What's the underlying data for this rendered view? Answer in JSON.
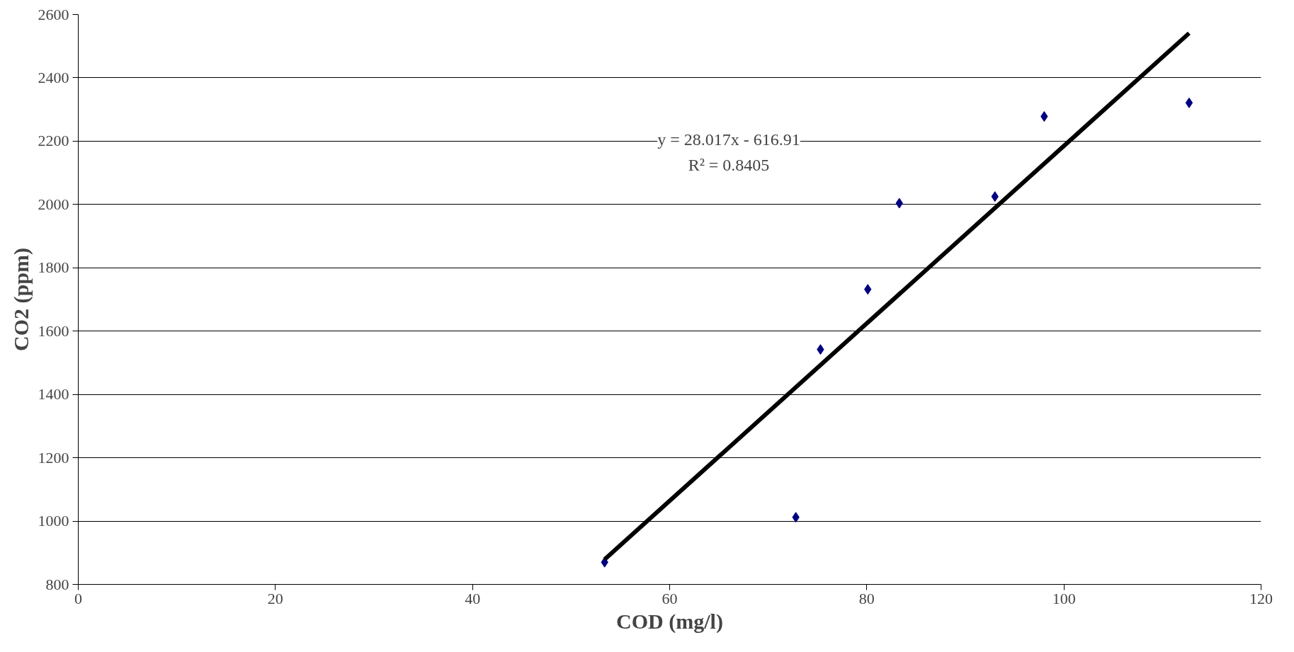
{
  "chart_data": {
    "type": "scatter",
    "xlabel": "COD (mg/l)",
    "ylabel": "CO2 (ppm)",
    "x": [
      53.4,
      72.8,
      75.3,
      80.1,
      83.3,
      93.0,
      98.0,
      112.7
    ],
    "series": [
      {
        "color": "#000080",
        "marker": "diamond",
        "values": [
          870,
          1012,
          1542,
          1732,
          2004,
          2025,
          2278,
          2321
        ]
      },
      {
        "type": "line",
        "color": "#000000",
        "x": [
          53.4,
          112.7
        ],
        "values": [
          879,
          2541
        ],
        "line_style": "solid"
      }
    ],
    "annotations": [
      "y = 28.017x - 616.91",
      "R² = 0.8405"
    ],
    "xlim": [
      0,
      120
    ],
    "ylim": [
      800,
      2600
    ],
    "xticks": [
      0,
      20,
      40,
      60,
      80,
      100,
      120
    ],
    "yticks": [
      800,
      1000,
      1200,
      1400,
      1600,
      1800,
      2000,
      2200,
      2400,
      2600
    ],
    "grid": "y"
  }
}
